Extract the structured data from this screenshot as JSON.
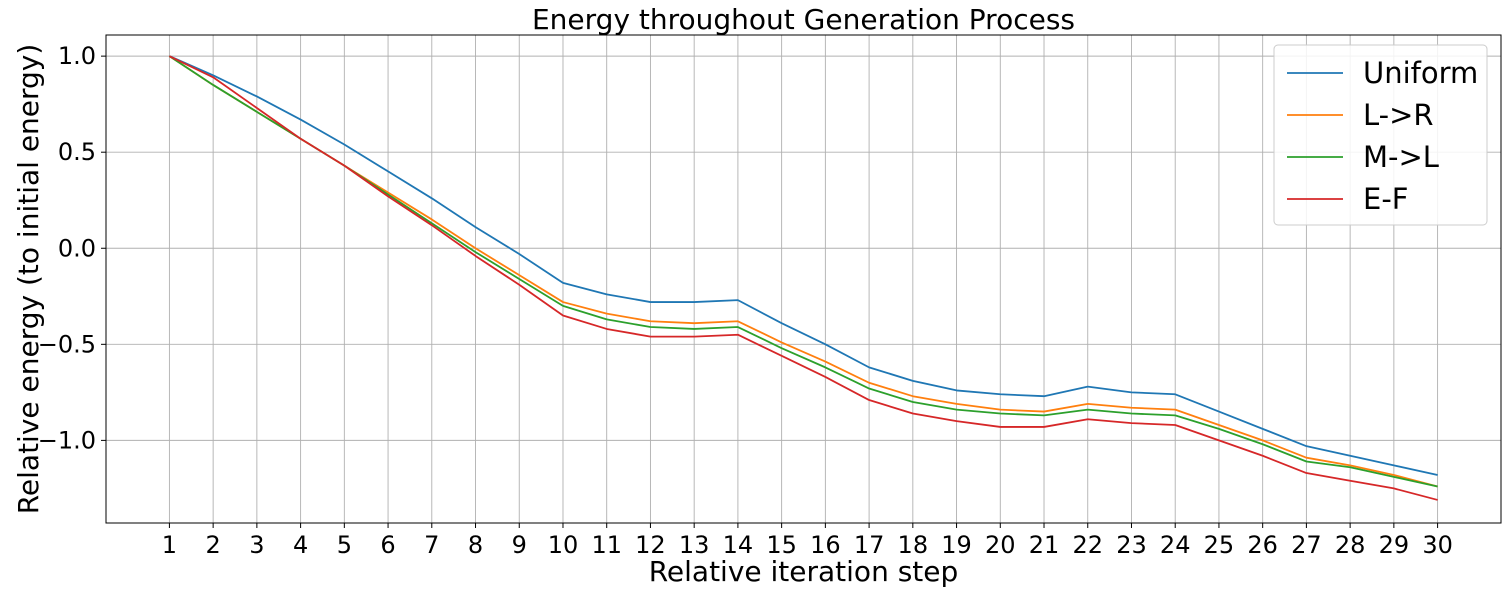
{
  "chart_data": {
    "type": "line",
    "title": "Energy throughout Generation Process",
    "xlabel": "Relative iteration step",
    "ylabel": "Relative energy (to initial energy)",
    "x": [
      1,
      2,
      3,
      4,
      5,
      6,
      7,
      8,
      9,
      10,
      11,
      12,
      13,
      14,
      15,
      16,
      17,
      18,
      19,
      20,
      21,
      22,
      23,
      24,
      25,
      26,
      27,
      28,
      29,
      30
    ],
    "xlim": [
      -0.45,
      31.45
    ],
    "ylim": [
      -1.43,
      1.11
    ],
    "yticks": [
      -1.0,
      -0.5,
      0.0,
      0.5,
      1.0
    ],
    "ytick_labels": [
      "−1.0",
      "−0.5",
      "0.0",
      "0.5",
      "1.0"
    ],
    "grid": true,
    "legend_position": "top-right",
    "series": [
      {
        "name": "Uniform",
        "color": "#1f77b4",
        "values": [
          1.0,
          0.9,
          0.79,
          0.67,
          0.54,
          0.4,
          0.26,
          0.11,
          -0.03,
          -0.18,
          -0.24,
          -0.28,
          -0.28,
          -0.27,
          -0.39,
          -0.5,
          -0.62,
          -0.69,
          -0.74,
          -0.76,
          -0.77,
          -0.72,
          -0.75,
          -0.76,
          -0.85,
          -0.94,
          -1.03,
          -1.08,
          -1.13,
          -1.18
        ]
      },
      {
        "name": "L->R",
        "color": "#ff7f0e",
        "values": [
          1.0,
          0.85,
          0.71,
          0.57,
          0.43,
          0.29,
          0.15,
          0.0,
          -0.14,
          -0.28,
          -0.34,
          -0.38,
          -0.39,
          -0.38,
          -0.49,
          -0.59,
          -0.7,
          -0.77,
          -0.81,
          -0.84,
          -0.85,
          -0.81,
          -0.83,
          -0.84,
          -0.92,
          -1.0,
          -1.09,
          -1.13,
          -1.18,
          -1.24
        ]
      },
      {
        "name": "M->L",
        "color": "#2ca02c",
        "values": [
          1.0,
          0.85,
          0.71,
          0.57,
          0.43,
          0.28,
          0.13,
          -0.02,
          -0.16,
          -0.3,
          -0.37,
          -0.41,
          -0.42,
          -0.41,
          -0.52,
          -0.62,
          -0.73,
          -0.8,
          -0.84,
          -0.86,
          -0.87,
          -0.84,
          -0.86,
          -0.87,
          -0.94,
          -1.02,
          -1.11,
          -1.14,
          -1.19,
          -1.24
        ]
      },
      {
        "name": "E-F",
        "color": "#d62728",
        "values": [
          1.0,
          0.89,
          0.73,
          0.57,
          0.43,
          0.27,
          0.12,
          -0.04,
          -0.19,
          -0.35,
          -0.42,
          -0.46,
          -0.46,
          -0.45,
          -0.56,
          -0.67,
          -0.79,
          -0.86,
          -0.9,
          -0.93,
          -0.93,
          -0.89,
          -0.91,
          -0.92,
          -1.0,
          -1.08,
          -1.17,
          -1.21,
          -1.25,
          -1.31
        ]
      }
    ]
  }
}
